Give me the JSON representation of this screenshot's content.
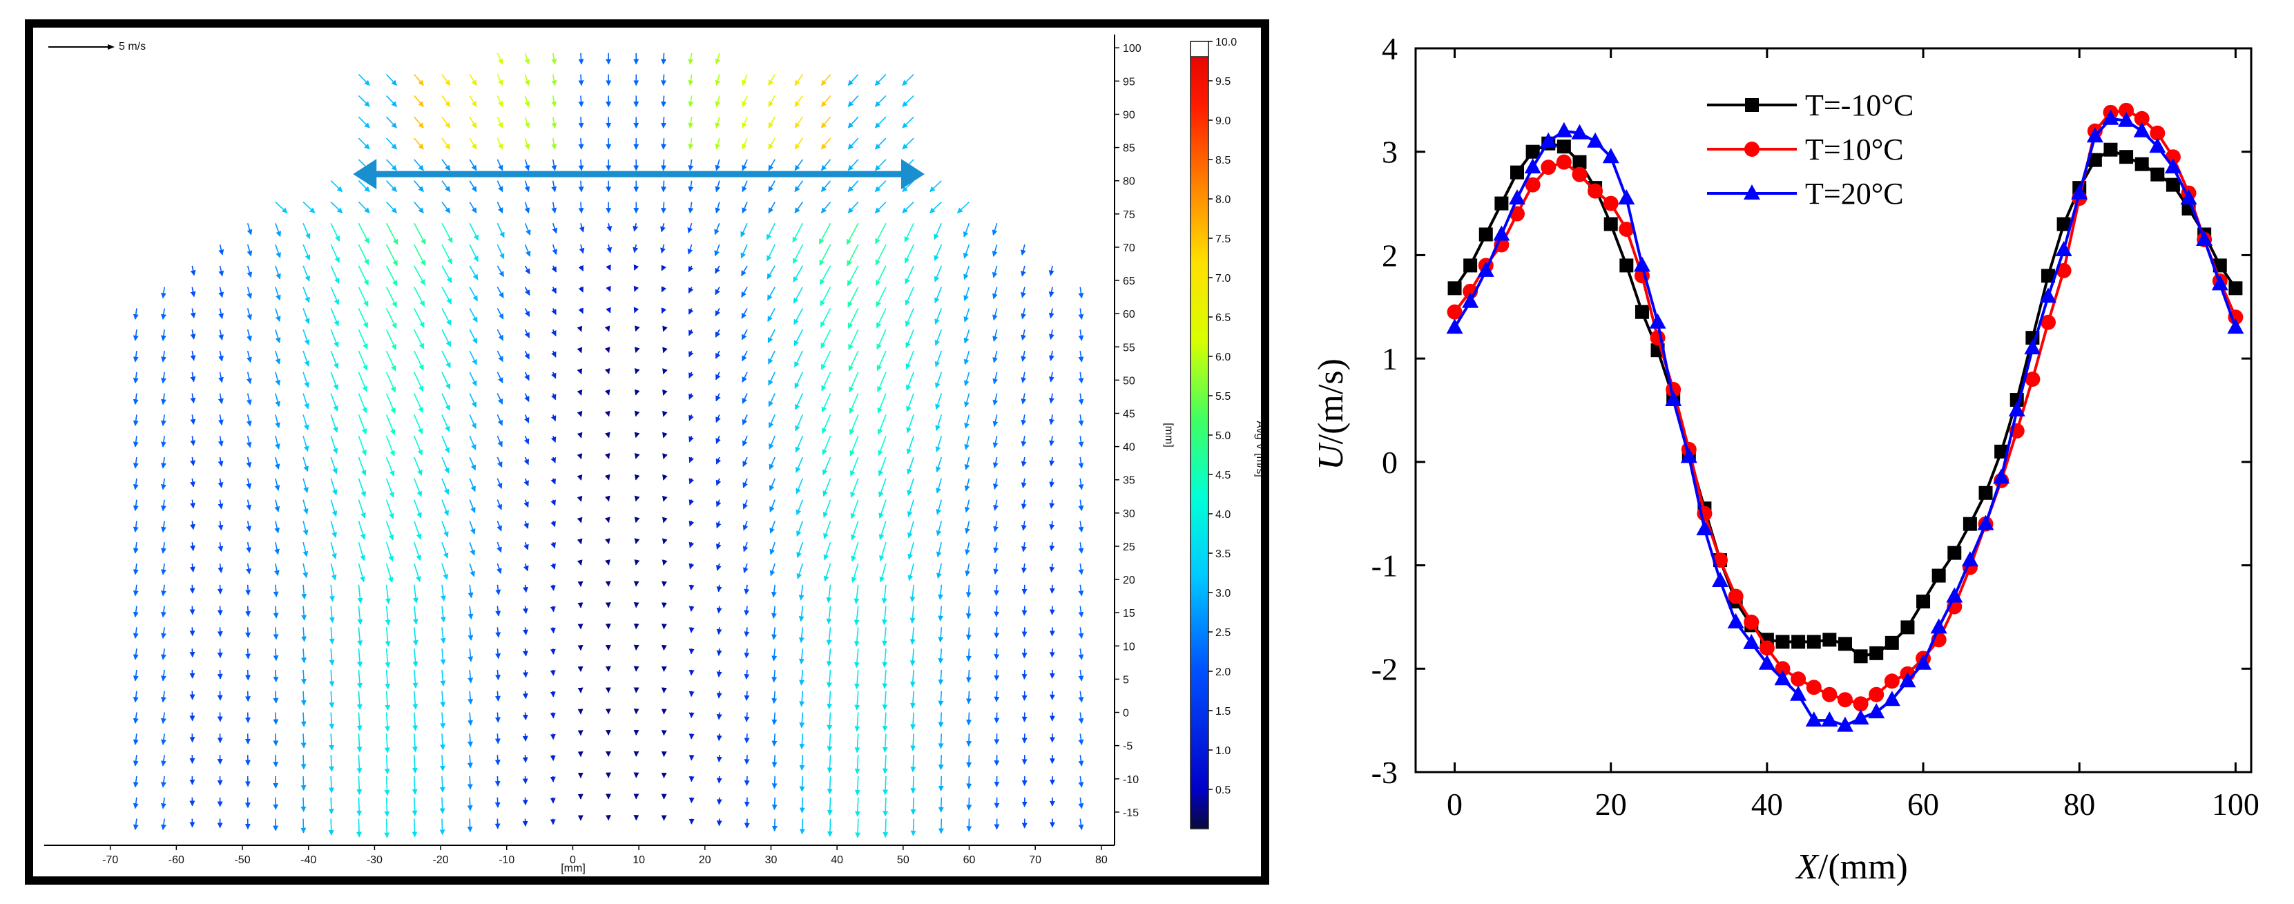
{
  "chart_data": [
    {
      "type": "vector-field",
      "title": "",
      "reference_vector_label": "5 m/s",
      "xlabel": "[mm]",
      "ylabel": "[mm]",
      "xlim": [
        -80,
        82
      ],
      "ylim": [
        -20,
        102
      ],
      "x_ticks": [
        -70,
        -60,
        -50,
        -40,
        -30,
        -20,
        -10,
        0,
        10,
        20,
        30,
        40,
        50,
        60,
        70,
        80
      ],
      "y_ticks": [
        100,
        95,
        90,
        85,
        80,
        75,
        70,
        65,
        60,
        55,
        50,
        45,
        40,
        35,
        30,
        25,
        20,
        15,
        10,
        5,
        0,
        -5,
        -10,
        -15
      ],
      "colorbar": {
        "label": "Avg V [m/s]",
        "range": [
          0,
          10
        ],
        "ticks": [
          "10.0",
          "9.5",
          "9.0",
          "8.5",
          "8.0",
          "7.5",
          "7.0",
          "6.5",
          "6.0",
          "5.5",
          "5.0",
          "4.5",
          "4.0",
          "3.5",
          "3.0",
          "2.5",
          "2.0",
          "1.5",
          "1.0",
          "0.5"
        ]
      },
      "annotation": "double-headed arrow spanning x = -32 to 52 mm at y = 81 mm",
      "arrow_span_mm": [
        -32,
        52
      ],
      "arrow_y_mm": 81
    },
    {
      "type": "line",
      "title": "",
      "xlabel": "X/(mm)",
      "ylabel": "U/(m/s)",
      "xlim": [
        -5,
        102
      ],
      "ylim": [
        -3,
        4
      ],
      "x_ticks": [
        "0",
        "20",
        "40",
        "60",
        "80",
        "100"
      ],
      "y_ticks": [
        "4",
        "3",
        "2",
        "1",
        "0",
        "-1",
        "-2",
        "-3"
      ],
      "series": [
        {
          "name": "T=-10°C",
          "color": "#000000",
          "marker": "square",
          "x": [
            0,
            2,
            4,
            6,
            8,
            10,
            12,
            14,
            16,
            18,
            20,
            22,
            24,
            26,
            28,
            30,
            32,
            34,
            36,
            38,
            40,
            42,
            44,
            46,
            48,
            50,
            52,
            54,
            56,
            58,
            60,
            62,
            64,
            66,
            68,
            70,
            72,
            74,
            76,
            78,
            80,
            82,
            84,
            86,
            88,
            90,
            92,
            94,
            96,
            98,
            100
          ],
          "y": [
            1.68,
            1.9,
            2.2,
            2.5,
            2.8,
            3.0,
            3.08,
            3.05,
            2.9,
            2.65,
            2.3,
            1.9,
            1.45,
            1.08,
            0.62,
            0.08,
            -0.45,
            -0.95,
            -1.35,
            -1.58,
            -1.72,
            -1.74,
            -1.74,
            -1.74,
            -1.72,
            -1.76,
            -1.88,
            -1.85,
            -1.75,
            -1.6,
            -1.35,
            -1.1,
            -0.88,
            -0.6,
            -0.3,
            0.1,
            0.6,
            1.2,
            1.8,
            2.3,
            2.65,
            2.92,
            3.02,
            2.95,
            2.88,
            2.78,
            2.68,
            2.45,
            2.2,
            1.9,
            1.68
          ]
        },
        {
          "name": "T=10°C",
          "color": "#ff0000",
          "marker": "circle",
          "x": [
            0,
            2,
            4,
            6,
            8,
            10,
            12,
            14,
            16,
            18,
            20,
            22,
            24,
            26,
            28,
            30,
            32,
            34,
            36,
            38,
            40,
            42,
            44,
            46,
            48,
            50,
            52,
            54,
            56,
            58,
            60,
            62,
            64,
            66,
            68,
            70,
            72,
            74,
            76,
            78,
            80,
            82,
            84,
            86,
            88,
            90,
            92,
            94,
            96,
            98,
            100
          ],
          "y": [
            1.45,
            1.65,
            1.9,
            2.1,
            2.4,
            2.68,
            2.85,
            2.9,
            2.78,
            2.62,
            2.5,
            2.25,
            1.8,
            1.2,
            0.7,
            0.12,
            -0.5,
            -0.95,
            -1.3,
            -1.55,
            -1.8,
            -2.0,
            -2.1,
            -2.18,
            -2.25,
            -2.3,
            -2.34,
            -2.25,
            -2.12,
            -2.05,
            -1.9,
            -1.72,
            -1.4,
            -1.02,
            -0.6,
            -0.18,
            0.3,
            0.8,
            1.35,
            1.85,
            2.55,
            3.2,
            3.38,
            3.4,
            3.32,
            3.18,
            2.95,
            2.6,
            2.15,
            1.75,
            1.4
          ]
        },
        {
          "name": "T=20°C",
          "color": "#0000ff",
          "marker": "triangle",
          "x": [
            0,
            2,
            4,
            6,
            8,
            10,
            12,
            14,
            16,
            18,
            20,
            22,
            24,
            26,
            28,
            30,
            32,
            34,
            36,
            38,
            40,
            42,
            44,
            46,
            48,
            50,
            52,
            54,
            56,
            58,
            60,
            62,
            64,
            66,
            68,
            70,
            72,
            74,
            76,
            78,
            80,
            82,
            84,
            86,
            88,
            90,
            92,
            94,
            96,
            98,
            100
          ],
          "y": [
            1.3,
            1.55,
            1.85,
            2.2,
            2.55,
            2.85,
            3.1,
            3.2,
            3.18,
            3.1,
            2.95,
            2.55,
            1.9,
            1.35,
            0.6,
            0.05,
            -0.65,
            -1.15,
            -1.55,
            -1.75,
            -1.95,
            -2.1,
            -2.25,
            -2.5,
            -2.5,
            -2.55,
            -2.48,
            -2.42,
            -2.3,
            -2.12,
            -1.95,
            -1.6,
            -1.3,
            -0.95,
            -0.6,
            -0.15,
            0.5,
            1.1,
            1.6,
            2.05,
            2.6,
            3.15,
            3.32,
            3.3,
            3.2,
            3.05,
            2.85,
            2.55,
            2.15,
            1.72,
            1.3
          ]
        }
      ],
      "legend": [
        "T=-10°C",
        "T=10°C",
        "T=20°C"
      ],
      "legend_position": "top-center",
      "grid": false
    }
  ]
}
